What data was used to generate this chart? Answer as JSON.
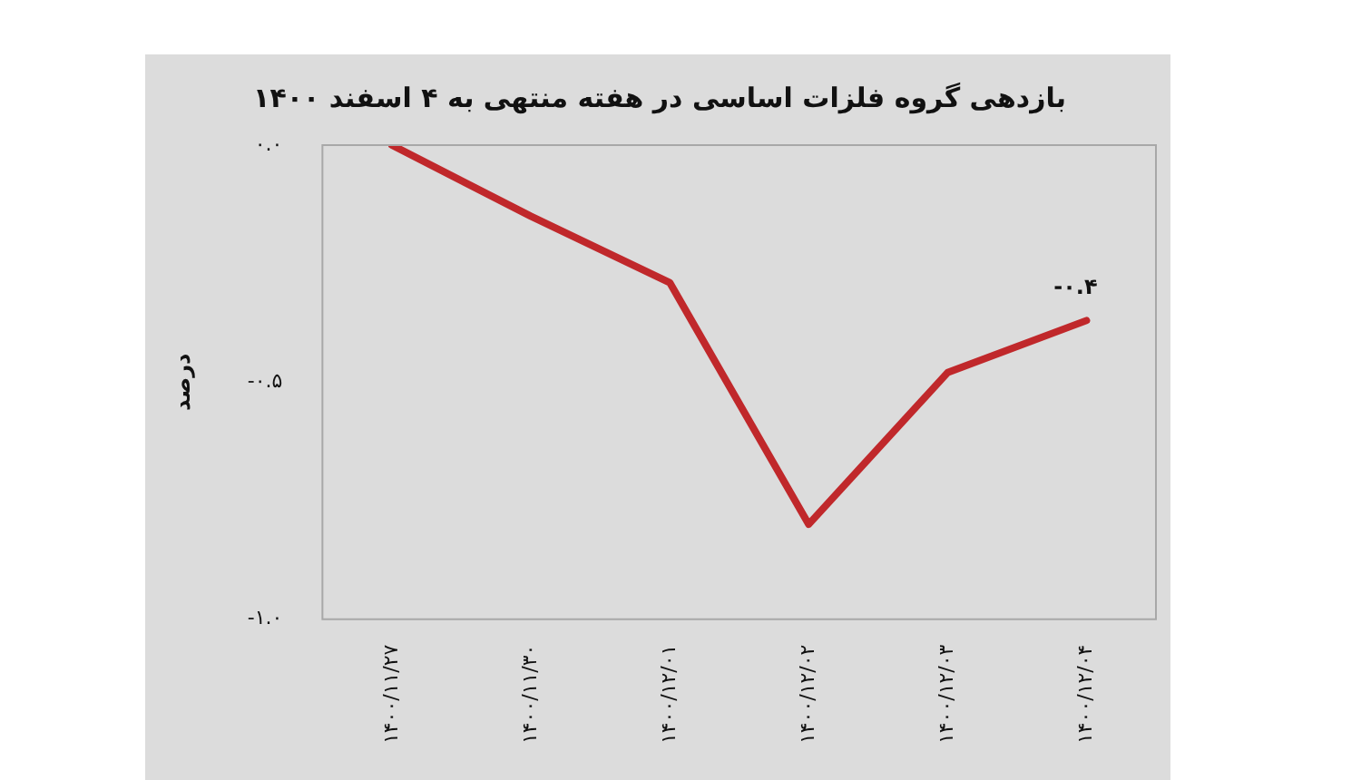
{
  "chart_data": {
    "type": "line",
    "title": "بازدهی گروه فلزات اساسی در هفته منتهی به ۴ اسفند ۱۴۰۰",
    "ylabel": "درصد",
    "categories": [
      "۱۴۰۰/۱۱/۲۷",
      "۱۴۰۰/۱۱/۳۰",
      "۱۴۰۰/۱۲/۰۱",
      "۱۴۰۰/۱۲/۰۲",
      "۱۴۰۰/۱۲/۰۳",
      "۱۴۰۰/۱۲/۰۴"
    ],
    "series": [
      {
        "color": "#c0282b",
        "values": [
          0,
          -0.15,
          -0.29,
          -0.8,
          -0.48,
          -0.37
        ],
        "value_labels": [
          null,
          null,
          null,
          null,
          null,
          "-۰.۴"
        ]
      }
    ],
    "ylim": [
      -1,
      0
    ],
    "yticks": [
      {
        "value": 0,
        "label": "۰.۰"
      },
      {
        "value": -0.5,
        "label": "-۰.۵"
      },
      {
        "value": -1,
        "label": "-۱.۰"
      }
    ],
    "grid": false,
    "legend": false,
    "marker": "none",
    "line_style": "solid"
  }
}
